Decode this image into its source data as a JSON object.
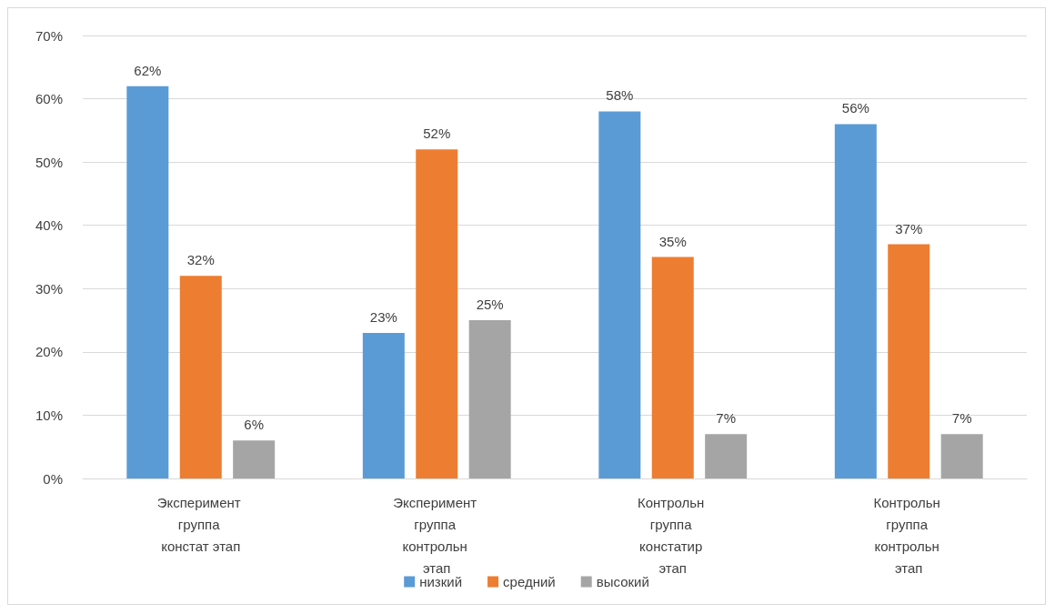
{
  "chart_data": {
    "type": "bar",
    "categories": [
      "Эксперимент группа констат этап",
      "Эксперимент группа контрольн этап",
      "Контрольн группа констатир этап",
      "Контрольн группа контрольн этап"
    ],
    "series": [
      {
        "name": "низкий",
        "color": "#5b9bd5",
        "values": [
          62,
          23,
          58,
          56
        ],
        "value_labels": [
          "62%",
          "23%",
          "58%",
          "56%"
        ]
      },
      {
        "name": "средний",
        "color": "#ed7d31",
        "values": [
          32,
          52,
          35,
          37
        ],
        "value_labels": [
          "32%",
          "52%",
          "35%",
          "37%"
        ]
      },
      {
        "name": "высокий",
        "color": "#a5a5a5",
        "values": [
          6,
          25,
          7,
          7
        ],
        "value_labels": [
          "6%",
          "25%",
          "7%",
          "7%"
        ]
      }
    ],
    "ylim": [
      0,
      70
    ],
    "yticks": [
      {
        "value": 0,
        "label": "0%"
      },
      {
        "value": 10,
        "label": "10%"
      },
      {
        "value": 20,
        "label": "20%"
      },
      {
        "value": 30,
        "label": "30%"
      },
      {
        "value": 40,
        "label": "40%"
      },
      {
        "value": 50,
        "label": "50%"
      },
      {
        "value": 60,
        "label": "60%"
      },
      {
        "value": 70,
        "label": "70%"
      }
    ],
    "grid": "y",
    "legend": "bottom"
  }
}
